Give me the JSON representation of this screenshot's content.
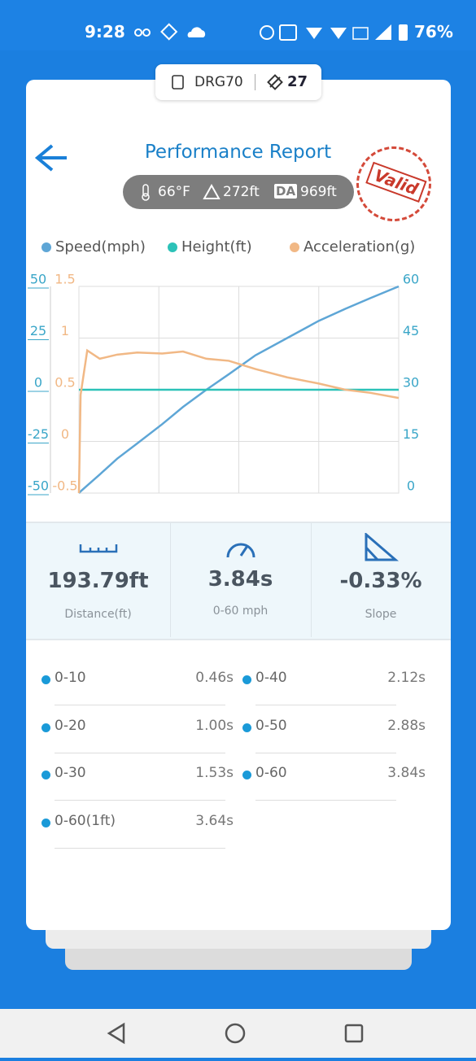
{
  "status_bar": {
    "time": "9:28",
    "battery": "76%"
  },
  "device": {
    "name": "DRG70",
    "satellites": "27"
  },
  "header": {
    "title": "Performance Report",
    "temperature": "66°F",
    "altitude": "272ft",
    "da_label": "DA",
    "density_altitude": "969ft",
    "stamp": "Valid"
  },
  "chart_data": {
    "type": "line",
    "x": [
      0,
      0.02,
      0.1,
      0.25,
      0.46,
      0.7,
      1.0,
      1.25,
      1.53,
      1.8,
      2.12,
      2.5,
      2.88,
      3.2,
      3.5,
      3.84
    ],
    "xlim": [
      0,
      3.84
    ],
    "ylim": [
      -50,
      50
    ],
    "yticks": [
      50,
      25,
      0,
      -25,
      -50
    ],
    "y2lim": [
      0,
      60
    ],
    "y2ticks": [
      60,
      45,
      30,
      15,
      0
    ],
    "y3lim": [
      -0.5,
      1.5
    ],
    "y3ticks": [
      1.5,
      1,
      0.5,
      0,
      -0.5
    ],
    "grid": true,
    "series": [
      {
        "name": "Speed(mph)",
        "color": "#5ea6d6",
        "axis": "y2",
        "values": [
          0,
          0.5,
          2.2,
          5.4,
          10,
          14.4,
          20,
          25,
          30,
          34.5,
          40,
          45,
          50,
          53.5,
          56.6,
          60
        ]
      },
      {
        "name": "Height(ft)",
        "color": "#2cc2b8",
        "axis": "y",
        "values": [
          0,
          0,
          0,
          0,
          0,
          0,
          0,
          0,
          0,
          0,
          0,
          0,
          0,
          0,
          0,
          0
        ]
      },
      {
        "name": "Acceleration(g)",
        "color": "#f1b885",
        "axis": "y3",
        "values": [
          -0.5,
          0.45,
          0.88,
          0.8,
          0.84,
          0.86,
          0.85,
          0.87,
          0.8,
          0.78,
          0.7,
          0.62,
          0.56,
          0.5,
          0.47,
          0.42
        ]
      }
    ]
  },
  "stats": [
    {
      "value": "193.79ft",
      "label": "Distance(ft)"
    },
    {
      "value": "3.84s",
      "label": "0-60 mph"
    },
    {
      "value": "-0.33%",
      "label": "Slope"
    }
  ],
  "splits": [
    {
      "label": "0-10",
      "time": "0.46s"
    },
    {
      "label": "0-40",
      "time": "2.12s"
    },
    {
      "label": "0-20",
      "time": "1.00s"
    },
    {
      "label": "0-50",
      "time": "2.88s"
    },
    {
      "label": "0-30",
      "time": "1.53s"
    },
    {
      "label": "0-60",
      "time": "3.84s"
    },
    {
      "label": "0-60(1ft)",
      "time": "3.64s"
    }
  ]
}
